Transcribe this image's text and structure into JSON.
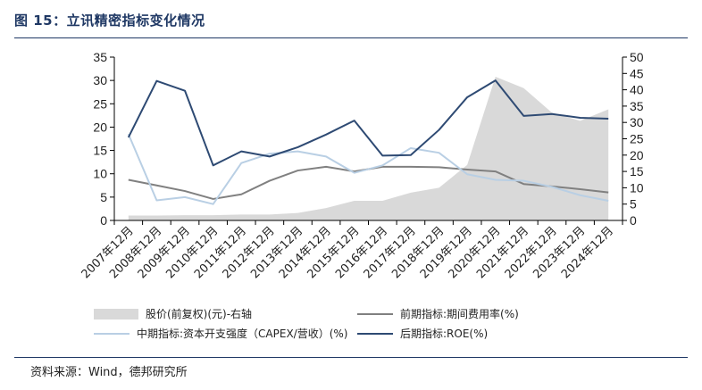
{
  "header": {
    "title": "图 15：立讯精密指标变化情况"
  },
  "footer": {
    "source": "资料来源：Wind，德邦研究所"
  },
  "chart_data": {
    "type": "line",
    "categories": [
      "2007年12月",
      "2008年12月",
      "2009年12月",
      "2010年12月",
      "2011年12月",
      "2012年12月",
      "2013年12月",
      "2014年12月",
      "2015年12月",
      "2016年12月",
      "2017年12月",
      "2018年12月",
      "2019年12月",
      "2020年12月",
      "2021年12月",
      "2022年12月",
      "2023年12月",
      "2024年12月"
    ],
    "left_axis": {
      "min": 0,
      "max": 35,
      "ticks": [
        0,
        5,
        10,
        15,
        20,
        25,
        30,
        35
      ]
    },
    "right_axis": {
      "min": 0,
      "max": 50,
      "ticks": [
        0,
        5,
        10,
        15,
        20,
        25,
        30,
        35,
        40,
        45,
        50
      ]
    },
    "series": [
      {
        "name": "股价(前复权)(元)-右轴",
        "kind": "area",
        "axis": "right",
        "color": "#d9d9d9",
        "values": [
          1.5,
          1.5,
          1.6,
          1.6,
          1.8,
          1.8,
          2.3,
          3.8,
          6,
          6,
          8.5,
          10,
          17,
          44,
          40.5,
          33,
          30.5,
          34
        ]
      },
      {
        "name": "前期指标:期间费用率(%)",
        "kind": "line",
        "axis": "left",
        "color": "#808080",
        "values": [
          8.7,
          7.5,
          6.3,
          4.6,
          5.6,
          8.5,
          10.7,
          11.5,
          10.5,
          11.5,
          11.5,
          11.4,
          10.9,
          10.5,
          7.8,
          7.3,
          6.7,
          6.0
        ]
      },
      {
        "name": "中期指标:资本开支强度（CAPEX/营收）(%)",
        "kind": "line",
        "axis": "left",
        "color": "#b9cfe4",
        "values": [
          18.5,
          4.3,
          5.0,
          3.5,
          12.3,
          14.3,
          14.8,
          13.7,
          10.2,
          11.8,
          15.5,
          14.5,
          9.9,
          8.7,
          8.5,
          7.2,
          5.4,
          4.2
        ]
      },
      {
        "name": "后期指标:ROE(%)",
        "kind": "line",
        "axis": "left",
        "color": "#2e4a73",
        "values": [
          17.8,
          29.9,
          27.8,
          11.8,
          14.8,
          13.7,
          15.7,
          18.4,
          21.4,
          13.9,
          14.0,
          19.4,
          26.4,
          30.0,
          22.4,
          22.8,
          22.0,
          21.8
        ]
      }
    ]
  }
}
